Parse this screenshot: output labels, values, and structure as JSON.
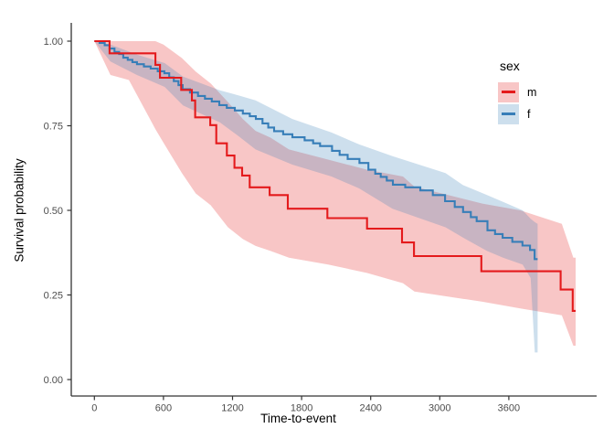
{
  "figure_type": "kaplan-meier-survival-plot",
  "axes": {
    "x_title": "Time-to-event",
    "y_title": "Survival probability",
    "x_ticks": [
      {
        "label": "0",
        "value": 0
      },
      {
        "label": "600",
        "value": 600
      },
      {
        "label": "1200",
        "value": 1200
      },
      {
        "label": "1800",
        "value": 1800
      },
      {
        "label": "2400",
        "value": 2400
      },
      {
        "label": "3000",
        "value": 3000
      },
      {
        "label": "3600",
        "value": 3600
      }
    ],
    "y_ticks": [
      {
        "label": "0.00",
        "value": 0.0
      },
      {
        "label": "0.25",
        "value": 0.25
      },
      {
        "label": "0.50",
        "value": 0.5
      },
      {
        "label": "0.75",
        "value": 0.75
      },
      {
        "label": "1.00",
        "value": 1.0
      }
    ],
    "axis_line_color": "#333333",
    "tick_label_color": "#4d4d4d"
  },
  "legend": {
    "title": "sex",
    "items": [
      {
        "label": "m",
        "line_color": "#E41A1C",
        "fill_color": "rgba(228,26,28,0.25)"
      },
      {
        "label": "f",
        "line_color": "#377EB8",
        "fill_color": "rgba(55,126,184,0.25)"
      }
    ]
  },
  "chart_data": {
    "type": "line",
    "subtype": "step-survival-with-confidence-bands",
    "title": "",
    "xlabel": "Time-to-event",
    "ylabel": "Survival probability",
    "xlim": [
      -200,
      4365
    ],
    "ylim": [
      -0.05,
      1.05
    ],
    "grid": false,
    "legend_position": "right",
    "x_tick_values": [
      0,
      600,
      1200,
      1800,
      2400,
      3000,
      3600
    ],
    "y_tick_values": [
      0.0,
      0.25,
      0.5,
      0.75,
      1.0
    ],
    "series": [
      {
        "name": "m",
        "color": "#E41A1C",
        "fill": "rgba(228,26,28,0.25)",
        "end_time": 4180,
        "steps": [
          [
            0,
            1.0
          ],
          [
            132,
            0.964
          ],
          [
            530,
            0.93
          ],
          [
            570,
            0.892
          ],
          [
            754,
            0.856
          ],
          [
            847,
            0.825
          ],
          [
            875,
            0.775
          ],
          [
            1006,
            0.752
          ],
          [
            1059,
            0.698
          ],
          [
            1151,
            0.662
          ],
          [
            1217,
            0.626
          ],
          [
            1283,
            0.603
          ],
          [
            1349,
            0.568
          ],
          [
            1522,
            0.545
          ],
          [
            1680,
            0.505
          ],
          [
            2024,
            0.477
          ],
          [
            2368,
            0.446
          ],
          [
            2672,
            0.405
          ],
          [
            2776,
            0.365
          ],
          [
            3361,
            0.32
          ],
          [
            4050,
            0.266
          ],
          [
            4155,
            0.203
          ]
        ],
        "ci": [
          [
            0,
            1.0,
            1.0
          ],
          [
            140,
            0.9,
            1.0
          ],
          [
            300,
            0.885,
            1.0
          ],
          [
            530,
            0.74,
            1.0
          ],
          [
            600,
            0.7,
            0.99
          ],
          [
            760,
            0.61,
            0.95
          ],
          [
            880,
            0.55,
            0.91
          ],
          [
            1010,
            0.515,
            0.875
          ],
          [
            1160,
            0.45,
            0.82
          ],
          [
            1290,
            0.415,
            0.77
          ],
          [
            1400,
            0.395,
            0.735
          ],
          [
            1530,
            0.38,
            0.715
          ],
          [
            1690,
            0.36,
            0.68
          ],
          [
            2030,
            0.34,
            0.65
          ],
          [
            2370,
            0.315,
            0.62
          ],
          [
            2680,
            0.285,
            0.6
          ],
          [
            2780,
            0.26,
            0.57
          ],
          [
            3370,
            0.23,
            0.52
          ],
          [
            3700,
            0.21,
            0.5
          ],
          [
            4060,
            0.19,
            0.46
          ],
          [
            4160,
            0.1,
            0.36
          ],
          [
            4180,
            0.1,
            0.36
          ]
        ]
      },
      {
        "name": "f",
        "color": "#377EB8",
        "fill": "rgba(55,126,184,0.25)",
        "end_time": 3850,
        "steps": [
          [
            0,
            1.0
          ],
          [
            45,
            0.995
          ],
          [
            90,
            0.988
          ],
          [
            132,
            0.978
          ],
          [
            175,
            0.968
          ],
          [
            215,
            0.962
          ],
          [
            251,
            0.951
          ],
          [
            290,
            0.945
          ],
          [
            330,
            0.938
          ],
          [
            370,
            0.932
          ],
          [
            430,
            0.925
          ],
          [
            489,
            0.919
          ],
          [
            550,
            0.911
          ],
          [
            608,
            0.905
          ],
          [
            650,
            0.893
          ],
          [
            690,
            0.882
          ],
          [
            730,
            0.87
          ],
          [
            767,
            0.858
          ],
          [
            830,
            0.848
          ],
          [
            900,
            0.838
          ],
          [
            960,
            0.83
          ],
          [
            1020,
            0.822
          ],
          [
            1085,
            0.811
          ],
          [
            1150,
            0.803
          ],
          [
            1220,
            0.795
          ],
          [
            1290,
            0.786
          ],
          [
            1350,
            0.778
          ],
          [
            1402,
            0.77
          ],
          [
            1460,
            0.757
          ],
          [
            1510,
            0.745
          ],
          [
            1561,
            0.734
          ],
          [
            1640,
            0.725
          ],
          [
            1720,
            0.716
          ],
          [
            1826,
            0.707
          ],
          [
            1900,
            0.698
          ],
          [
            1960,
            0.69
          ],
          [
            2064,
            0.676
          ],
          [
            2130,
            0.664
          ],
          [
            2200,
            0.652
          ],
          [
            2302,
            0.64
          ],
          [
            2380,
            0.62
          ],
          [
            2440,
            0.608
          ],
          [
            2487,
            0.599
          ],
          [
            2540,
            0.588
          ],
          [
            2593,
            0.576
          ],
          [
            2700,
            0.568
          ],
          [
            2831,
            0.559
          ],
          [
            2940,
            0.545
          ],
          [
            3046,
            0.527
          ],
          [
            3130,
            0.51
          ],
          [
            3202,
            0.495
          ],
          [
            3270,
            0.48
          ],
          [
            3321,
            0.468
          ],
          [
            3414,
            0.441
          ],
          [
            3480,
            0.43
          ],
          [
            3546,
            0.419
          ],
          [
            3630,
            0.407
          ],
          [
            3718,
            0.396
          ],
          [
            3784,
            0.383
          ],
          [
            3824,
            0.356
          ]
        ],
        "ci": [
          [
            0,
            1.0,
            1.0
          ],
          [
            140,
            0.94,
            0.99
          ],
          [
            370,
            0.9,
            0.96
          ],
          [
            610,
            0.865,
            0.935
          ],
          [
            770,
            0.81,
            0.895
          ],
          [
            1090,
            0.76,
            0.855
          ],
          [
            1250,
            0.72,
            0.84
          ],
          [
            1400,
            0.68,
            0.825
          ],
          [
            1720,
            0.635,
            0.77
          ],
          [
            2060,
            0.6,
            0.73
          ],
          [
            2300,
            0.565,
            0.695
          ],
          [
            2590,
            0.505,
            0.66
          ],
          [
            3050,
            0.45,
            0.61
          ],
          [
            3200,
            0.42,
            0.575
          ],
          [
            3410,
            0.38,
            0.545
          ],
          [
            3550,
            0.36,
            0.525
          ],
          [
            3720,
            0.34,
            0.5
          ],
          [
            3790,
            0.3,
            0.475
          ],
          [
            3825,
            0.08,
            0.465
          ],
          [
            3850,
            0.08,
            0.46
          ]
        ]
      }
    ]
  }
}
